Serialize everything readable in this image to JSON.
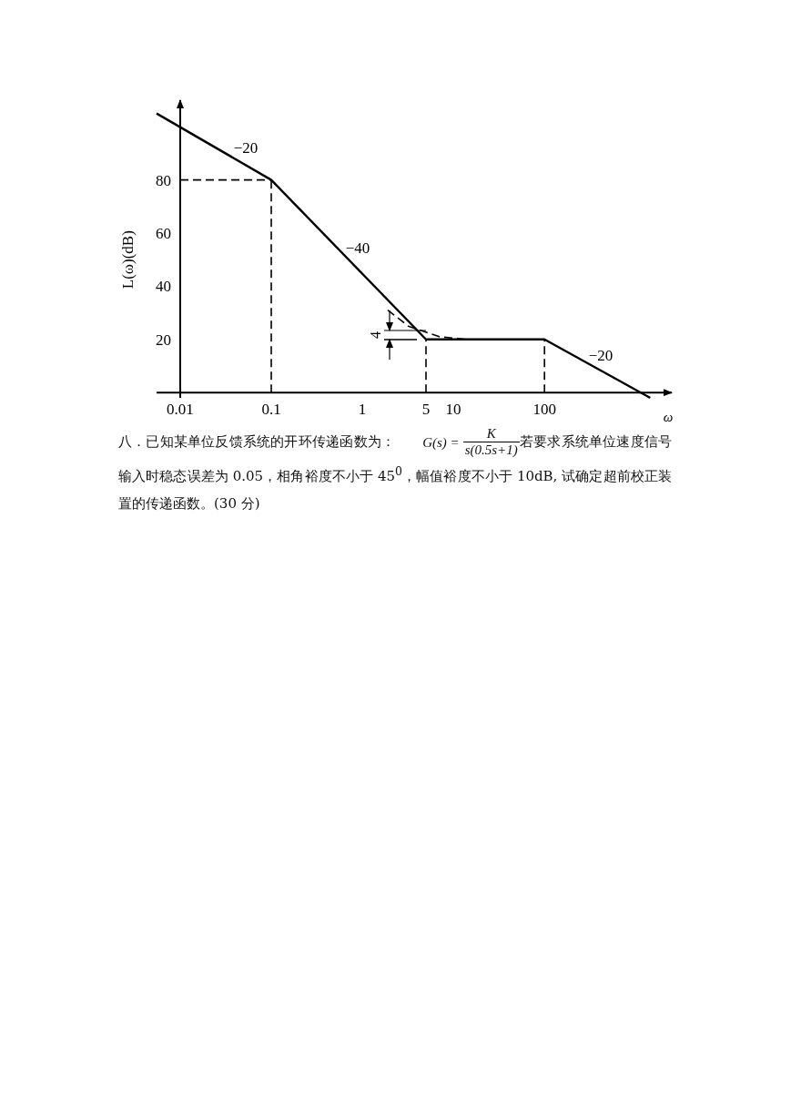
{
  "chart_data": {
    "type": "line",
    "ylabel": "L(ω)(dB)",
    "xlabel": "ω",
    "log": "x",
    "xlim": [
      0.0055,
      2500
    ],
    "ylim": [
      -2,
      110
    ],
    "ref_lines": [
      {
        "axis": "x",
        "value": 0.01
      }
    ],
    "xticks": [
      0.01,
      0.1,
      1,
      5,
      10,
      100
    ],
    "yticks": [
      20,
      40,
      60,
      80
    ],
    "series": [
      {
        "color": "#000000",
        "line_style": "solid",
        "x": [
          0.0055,
          0.1,
          5,
          100,
          1450
        ],
        "values": [
          105,
          80,
          20,
          20,
          -2
        ]
      },
      {
        "color": "#000000",
        "line_style": "dashed",
        "x": [
          1.9,
          3.2,
          7,
          13.6
        ],
        "values": [
          31,
          25,
          21,
          20
        ]
      },
      {
        "color": "#000000",
        "line_style": "dashed",
        "x": [
          0.01,
          0.1
        ],
        "values": [
          80,
          80
        ]
      },
      {
        "color": "#000000",
        "line_style": "dashed",
        "x": [
          0.1,
          0.1
        ],
        "values": [
          0,
          80
        ]
      },
      {
        "color": "#000000",
        "line_style": "dashed",
        "x": [
          5,
          5
        ],
        "values": [
          0,
          20
        ]
      },
      {
        "color": "#000000",
        "line_style": "dashed",
        "x": [
          100,
          100
        ],
        "values": [
          0,
          20
        ]
      }
    ],
    "annotations": [
      "−20",
      "−40",
      "−20",
      "4",
      "八．已知某单位反馈系统的开环传递函数为：",
      "G(s) =",
      "K",
      "s(0.5s+1)",
      "若要求系统单位速度信号输入时稳态误差为 0.05，相角裕度不小于 45$^{0}$，幅值裕度不小于 10dB, 试确定超前校正装置的传递函数。(30 分)"
    ]
  }
}
